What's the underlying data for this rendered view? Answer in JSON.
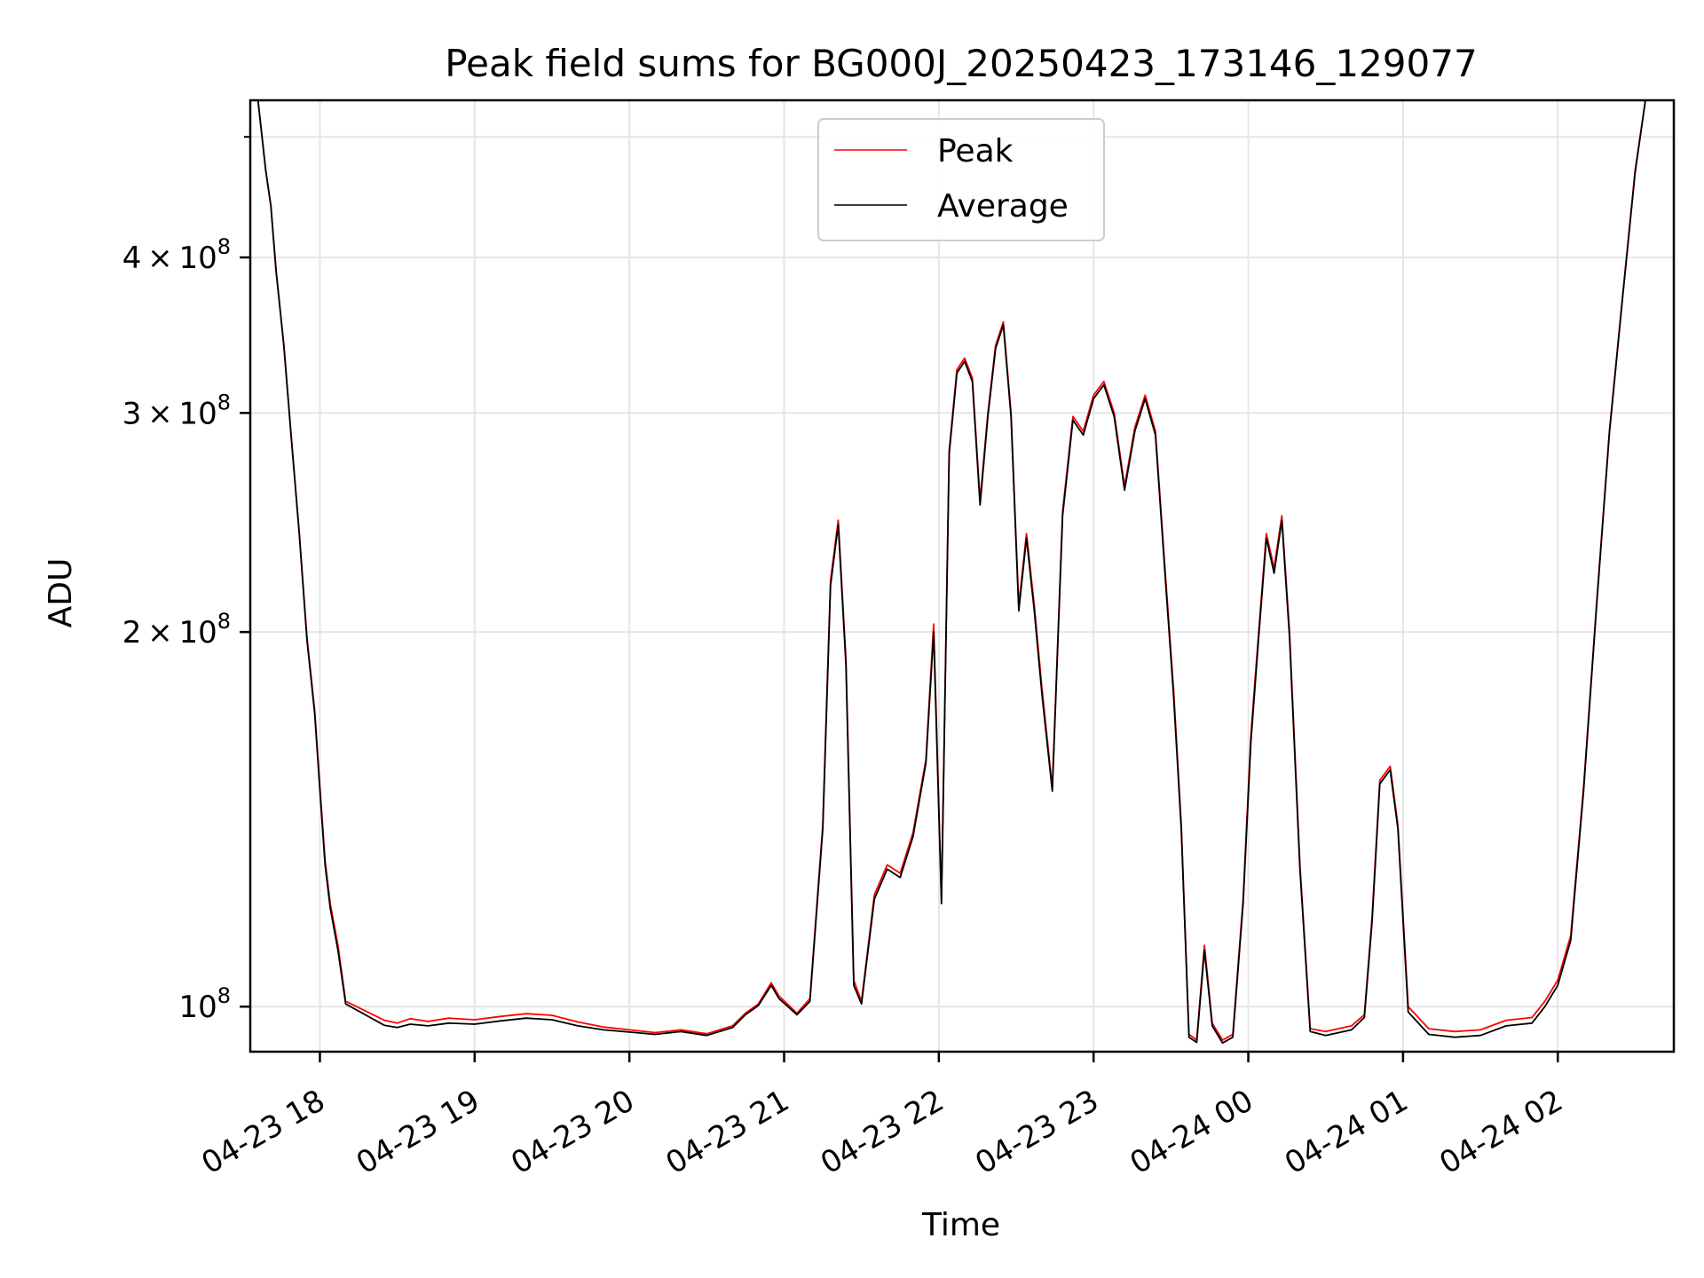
{
  "chart_data": {
    "type": "line",
    "title": "Peak field sums for BG000J_20250423_173146_129077",
    "xlabel": "Time",
    "ylabel": "ADU",
    "y_scale": "log",
    "grid": true,
    "legend_position": "top-center",
    "xlim": [
      "2025-04-23 17:33",
      "2025-04-24 02:45"
    ],
    "ylim": [
      92000000,
      535000000
    ],
    "x_ticks": [
      {
        "value": "2025-04-23 18:00",
        "label": "04-23 18"
      },
      {
        "value": "2025-04-23 19:00",
        "label": "04-23 19"
      },
      {
        "value": "2025-04-23 20:00",
        "label": "04-23 20"
      },
      {
        "value": "2025-04-23 21:00",
        "label": "04-23 21"
      },
      {
        "value": "2025-04-23 22:00",
        "label": "04-23 22"
      },
      {
        "value": "2025-04-23 23:00",
        "label": "04-23 23"
      },
      {
        "value": "2025-04-24 00:00",
        "label": "04-24 00"
      },
      {
        "value": "2025-04-24 01:00",
        "label": "04-24 01"
      },
      {
        "value": "2025-04-24 02:00",
        "label": "04-24 02"
      }
    ],
    "y_ticks": [
      {
        "value": 100000000,
        "mantissa": "",
        "exponent": "8"
      },
      {
        "value": 200000000,
        "mantissa": "2",
        "exponent": "8"
      },
      {
        "value": 300000000,
        "mantissa": "3",
        "exponent": "8"
      },
      {
        "value": 400000000,
        "mantissa": "4",
        "exponent": "8"
      }
    ],
    "y_minor_ticks": [
      500000000
    ],
    "series": [
      {
        "name": "Peak",
        "color": "#ff0000",
        "points": [
          [
            "2025-04-23 17:36",
            535000000
          ],
          [
            "2025-04-23 17:39",
            470000000
          ],
          [
            "2025-04-23 17:41",
            440000000
          ],
          [
            "2025-04-23 17:43",
            390000000
          ],
          [
            "2025-04-23 17:46",
            340000000
          ],
          [
            "2025-04-23 17:49",
            285000000
          ],
          [
            "2025-04-23 17:52",
            240000000
          ],
          [
            "2025-04-23 17:55",
            198000000
          ],
          [
            "2025-04-23 17:58",
            173000000
          ],
          [
            "2025-04-23 18:00",
            150000000
          ],
          [
            "2025-04-23 18:02",
            131000000
          ],
          [
            "2025-04-23 18:04",
            121000000
          ],
          [
            "2025-04-23 18:07",
            112000000
          ],
          [
            "2025-04-23 18:10",
            101000000
          ],
          [
            "2025-04-23 18:25",
            97500000
          ],
          [
            "2025-04-23 18:30",
            97000000
          ],
          [
            "2025-04-23 18:35",
            97800000
          ],
          [
            "2025-04-23 18:42",
            97300000
          ],
          [
            "2025-04-23 18:50",
            97900000
          ],
          [
            "2025-04-23 19:00",
            97600000
          ],
          [
            "2025-04-23 19:10",
            98200000
          ],
          [
            "2025-04-23 19:20",
            98700000
          ],
          [
            "2025-04-23 19:30",
            98400000
          ],
          [
            "2025-04-23 19:40",
            97200000
          ],
          [
            "2025-04-23 19:50",
            96300000
          ],
          [
            "2025-04-23 20:00",
            95800000
          ],
          [
            "2025-04-23 20:10",
            95300000
          ],
          [
            "2025-04-23 20:20",
            95800000
          ],
          [
            "2025-04-23 20:30",
            95100000
          ],
          [
            "2025-04-23 20:40",
            96500000
          ],
          [
            "2025-04-23 20:45",
            98800000
          ],
          [
            "2025-04-23 20:50",
            100500000
          ],
          [
            "2025-04-23 20:55",
            104500000
          ],
          [
            "2025-04-23 20:58",
            102000000
          ],
          [
            "2025-04-23 21:05",
            98800000
          ],
          [
            "2025-04-23 21:10",
            101500000
          ],
          [
            "2025-04-23 21:15",
            140000000
          ],
          [
            "2025-04-23 21:18",
            220000000
          ],
          [
            "2025-04-23 21:21",
            246000000
          ],
          [
            "2025-04-23 21:24",
            190000000
          ],
          [
            "2025-04-23 21:27",
            105000000
          ],
          [
            "2025-04-23 21:30",
            101000000
          ],
          [
            "2025-04-23 21:35",
            123000000
          ],
          [
            "2025-04-23 21:40",
            130000000
          ],
          [
            "2025-04-23 21:45",
            128000000
          ],
          [
            "2025-04-23 21:50",
            138000000
          ],
          [
            "2025-04-23 21:55",
            158000000
          ],
          [
            "2025-04-23 21:58",
            203000000
          ],
          [
            "2025-04-23 22:01",
            122000000
          ],
          [
            "2025-04-23 22:04",
            280000000
          ],
          [
            "2025-04-23 22:07",
            325000000
          ],
          [
            "2025-04-23 22:10",
            332000000
          ],
          [
            "2025-04-23 22:13",
            320000000
          ],
          [
            "2025-04-23 22:16",
            255000000
          ],
          [
            "2025-04-23 22:19",
            300000000
          ],
          [
            "2025-04-23 22:22",
            340000000
          ],
          [
            "2025-04-23 22:25",
            355000000
          ],
          [
            "2025-04-23 22:28",
            300000000
          ],
          [
            "2025-04-23 22:31",
            210000000
          ],
          [
            "2025-04-23 22:34",
            240000000
          ],
          [
            "2025-04-23 22:37",
            210000000
          ],
          [
            "2025-04-23 22:40",
            180000000
          ],
          [
            "2025-04-23 22:44",
            150000000
          ],
          [
            "2025-04-23 22:48",
            250000000
          ],
          [
            "2025-04-23 22:52",
            298000000
          ],
          [
            "2025-04-23 22:56",
            290000000
          ],
          [
            "2025-04-23 23:00",
            310000000
          ],
          [
            "2025-04-23 23:04",
            318000000
          ],
          [
            "2025-04-23 23:08",
            300000000
          ],
          [
            "2025-04-23 23:12",
            262000000
          ],
          [
            "2025-04-23 23:16",
            292000000
          ],
          [
            "2025-04-23 23:20",
            310000000
          ],
          [
            "2025-04-23 23:24",
            290000000
          ],
          [
            "2025-04-23 23:28",
            220000000
          ],
          [
            "2025-04-23 23:31",
            180000000
          ],
          [
            "2025-04-23 23:34",
            140000000
          ],
          [
            "2025-04-23 23:37",
            95000000
          ],
          [
            "2025-04-23 23:40",
            94000000
          ],
          [
            "2025-04-23 23:43",
            112000000
          ],
          [
            "2025-04-23 23:46",
            97000000
          ],
          [
            "2025-04-23 23:50",
            94000000
          ],
          [
            "2025-04-23 23:54",
            95000000
          ],
          [
            "2025-04-23 23:58",
            122000000
          ],
          [
            "2025-04-24 00:01",
            165000000
          ],
          [
            "2025-04-24 00:04",
            200000000
          ],
          [
            "2025-04-24 00:07",
            240000000
          ],
          [
            "2025-04-24 00:10",
            225000000
          ],
          [
            "2025-04-24 00:13",
            248000000
          ],
          [
            "2025-04-24 00:16",
            200000000
          ],
          [
            "2025-04-24 00:20",
            130000000
          ],
          [
            "2025-04-24 00:24",
            96000000
          ],
          [
            "2025-04-24 00:30",
            95500000
          ],
          [
            "2025-04-24 00:40",
            96500000
          ],
          [
            "2025-04-24 00:45",
            98500000
          ],
          [
            "2025-04-24 00:48",
            118000000
          ],
          [
            "2025-04-24 00:51",
            152000000
          ],
          [
            "2025-04-24 00:55",
            156000000
          ],
          [
            "2025-04-24 00:58",
            140000000
          ],
          [
            "2025-04-24 01:02",
            100000000
          ],
          [
            "2025-04-24 01:10",
            96000000
          ],
          [
            "2025-04-24 01:20",
            95500000
          ],
          [
            "2025-04-24 01:30",
            95800000
          ],
          [
            "2025-04-24 01:40",
            97500000
          ],
          [
            "2025-04-24 01:50",
            98000000
          ],
          [
            "2025-04-24 01:55",
            101000000
          ],
          [
            "2025-04-24 02:00",
            105000000
          ],
          [
            "2025-04-24 02:05",
            114000000
          ],
          [
            "2025-04-24 02:10",
            150000000
          ],
          [
            "2025-04-24 02:15",
            210000000
          ],
          [
            "2025-04-24 02:20",
            290000000
          ],
          [
            "2025-04-24 02:25",
            370000000
          ],
          [
            "2025-04-24 02:30",
            470000000
          ],
          [
            "2025-04-24 02:34",
            535000000
          ]
        ]
      },
      {
        "name": "Average",
        "color": "#000000",
        "points": [
          [
            "2025-04-23 17:36",
            535000000
          ],
          [
            "2025-04-23 17:39",
            470000000
          ],
          [
            "2025-04-23 17:41",
            440000000
          ],
          [
            "2025-04-23 17:43",
            390000000
          ],
          [
            "2025-04-23 17:46",
            340000000
          ],
          [
            "2025-04-23 17:49",
            285000000
          ],
          [
            "2025-04-23 17:52",
            240000000
          ],
          [
            "2025-04-23 17:55",
            197000000
          ],
          [
            "2025-04-23 17:58",
            172000000
          ],
          [
            "2025-04-23 18:00",
            149000000
          ],
          [
            "2025-04-23 18:02",
            130000000
          ],
          [
            "2025-04-23 18:04",
            120000000
          ],
          [
            "2025-04-23 18:07",
            111000000
          ],
          [
            "2025-04-23 18:10",
            100500000
          ],
          [
            "2025-04-23 18:25",
            96600000
          ],
          [
            "2025-04-23 18:30",
            96200000
          ],
          [
            "2025-04-23 18:35",
            96800000
          ],
          [
            "2025-04-23 18:42",
            96500000
          ],
          [
            "2025-04-23 18:50",
            97000000
          ],
          [
            "2025-04-23 19:00",
            96800000
          ],
          [
            "2025-04-23 19:10",
            97400000
          ],
          [
            "2025-04-23 19:20",
            97900000
          ],
          [
            "2025-04-23 19:30",
            97600000
          ],
          [
            "2025-04-23 19:40",
            96500000
          ],
          [
            "2025-04-23 19:50",
            95800000
          ],
          [
            "2025-04-23 20:00",
            95400000
          ],
          [
            "2025-04-23 20:10",
            95000000
          ],
          [
            "2025-04-23 20:20",
            95500000
          ],
          [
            "2025-04-23 20:30",
            94800000
          ],
          [
            "2025-04-23 20:40",
            96200000
          ],
          [
            "2025-04-23 20:45",
            98500000
          ],
          [
            "2025-04-23 20:50",
            100200000
          ],
          [
            "2025-04-23 20:55",
            104000000
          ],
          [
            "2025-04-23 20:58",
            101500000
          ],
          [
            "2025-04-23 21:05",
            98500000
          ],
          [
            "2025-04-23 21:10",
            101000000
          ],
          [
            "2025-04-23 21:15",
            139000000
          ],
          [
            "2025-04-23 21:18",
            218000000
          ],
          [
            "2025-04-23 21:21",
            244000000
          ],
          [
            "2025-04-23 21:24",
            188000000
          ],
          [
            "2025-04-23 21:27",
            104000000
          ],
          [
            "2025-04-23 21:30",
            100500000
          ],
          [
            "2025-04-23 21:35",
            122000000
          ],
          [
            "2025-04-23 21:40",
            129000000
          ],
          [
            "2025-04-23 21:45",
            127000000
          ],
          [
            "2025-04-23 21:50",
            137000000
          ],
          [
            "2025-04-23 21:55",
            157000000
          ],
          [
            "2025-04-23 21:58",
            200000000
          ],
          [
            "2025-04-23 22:01",
            121000000
          ],
          [
            "2025-04-23 22:04",
            278000000
          ],
          [
            "2025-04-23 22:07",
            323000000
          ],
          [
            "2025-04-23 22:10",
            330000000
          ],
          [
            "2025-04-23 22:13",
            318000000
          ],
          [
            "2025-04-23 22:16",
            253000000
          ],
          [
            "2025-04-23 22:19",
            298000000
          ],
          [
            "2025-04-23 22:22",
            338000000
          ],
          [
            "2025-04-23 22:25",
            353000000
          ],
          [
            "2025-04-23 22:28",
            298000000
          ],
          [
            "2025-04-23 22:31",
            208000000
          ],
          [
            "2025-04-23 22:34",
            238000000
          ],
          [
            "2025-04-23 22:37",
            208000000
          ],
          [
            "2025-04-23 22:40",
            178000000
          ],
          [
            "2025-04-23 22:44",
            149000000
          ],
          [
            "2025-04-23 22:48",
            248000000
          ],
          [
            "2025-04-23 22:52",
            296000000
          ],
          [
            "2025-04-23 22:56",
            288000000
          ],
          [
            "2025-04-23 23:00",
            308000000
          ],
          [
            "2025-04-23 23:04",
            316000000
          ],
          [
            "2025-04-23 23:08",
            298000000
          ],
          [
            "2025-04-23 23:12",
            260000000
          ],
          [
            "2025-04-23 23:16",
            290000000
          ],
          [
            "2025-04-23 23:20",
            308000000
          ],
          [
            "2025-04-23 23:24",
            288000000
          ],
          [
            "2025-04-23 23:28",
            218000000
          ],
          [
            "2025-04-23 23:31",
            178000000
          ],
          [
            "2025-04-23 23:34",
            139000000
          ],
          [
            "2025-04-23 23:37",
            94500000
          ],
          [
            "2025-04-23 23:40",
            93600000
          ],
          [
            "2025-04-23 23:43",
            111000000
          ],
          [
            "2025-04-23 23:46",
            96500000
          ],
          [
            "2025-04-23 23:50",
            93500000
          ],
          [
            "2025-04-23 23:54",
            94500000
          ],
          [
            "2025-04-23 23:58",
            121000000
          ],
          [
            "2025-04-24 00:01",
            163000000
          ],
          [
            "2025-04-24 00:04",
            198000000
          ],
          [
            "2025-04-24 00:07",
            238000000
          ],
          [
            "2025-04-24 00:10",
            223000000
          ],
          [
            "2025-04-24 00:13",
            246000000
          ],
          [
            "2025-04-24 00:16",
            198000000
          ],
          [
            "2025-04-24 00:20",
            129000000
          ],
          [
            "2025-04-24 00:24",
            95500000
          ],
          [
            "2025-04-24 00:30",
            94800000
          ],
          [
            "2025-04-24 00:40",
            95800000
          ],
          [
            "2025-04-24 00:45",
            98000000
          ],
          [
            "2025-04-24 00:48",
            117000000
          ],
          [
            "2025-04-24 00:51",
            151000000
          ],
          [
            "2025-04-24 00:55",
            155000000
          ],
          [
            "2025-04-24 00:58",
            139000000
          ],
          [
            "2025-04-24 01:02",
            99000000
          ],
          [
            "2025-04-24 01:10",
            95000000
          ],
          [
            "2025-04-24 01:20",
            94500000
          ],
          [
            "2025-04-24 01:30",
            94800000
          ],
          [
            "2025-04-24 01:40",
            96500000
          ],
          [
            "2025-04-24 01:50",
            97000000
          ],
          [
            "2025-04-24 01:55",
            100000000
          ],
          [
            "2025-04-24 02:00",
            104000000
          ],
          [
            "2025-04-24 02:05",
            113000000
          ],
          [
            "2025-04-24 02:10",
            149000000
          ],
          [
            "2025-04-24 02:15",
            209000000
          ],
          [
            "2025-04-24 02:20",
            289000000
          ],
          [
            "2025-04-24 02:25",
            369000000
          ],
          [
            "2025-04-24 02:30",
            468000000
          ],
          [
            "2025-04-24 02:34",
            535000000
          ]
        ]
      }
    ]
  }
}
